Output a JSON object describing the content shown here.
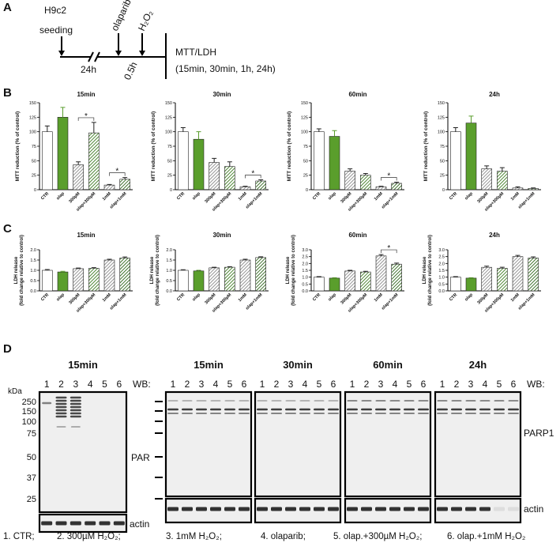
{
  "panel_a": {
    "label": "A",
    "cell": "H9c2",
    "seeding": "seeding",
    "first_interval": "24h",
    "drug": "olaparib",
    "second_interval": "0.5h",
    "stress": "H₂O₂",
    "readout": "MTT/LDH",
    "times": "(15min, 30min, 1h, 24h)"
  },
  "panel_b_label": "B",
  "panel_c_label": "C",
  "chart_data": [
    {
      "type": "bar",
      "title": "15min",
      "ylabel": "MTT reduction (% of control)",
      "categories": [
        "CTR",
        "olap",
        "300µM",
        "olap+300µM",
        "1mM",
        "olap+1mM"
      ],
      "values": [
        100,
        125,
        43,
        98,
        8,
        18
      ],
      "errors": [
        10,
        17,
        5,
        18,
        1,
        3
      ],
      "colors": [
        "#ffffff",
        "#5a9e2c",
        "#8a8a8a",
        "#3c7a20",
        "#8a8a8a",
        "#2c6418"
      ],
      "hatch": [
        false,
        false,
        true,
        true,
        true,
        true
      ],
      "ylim": [
        0,
        150
      ],
      "yticks": [
        0,
        25,
        50,
        75,
        100,
        125,
        150
      ],
      "significance": [
        {
          "between": [
            "300µM",
            "olap+300µM"
          ],
          "label": "*"
        },
        {
          "between": [
            "1mM",
            "olap+1mM"
          ],
          "label": "*"
        }
      ]
    },
    {
      "type": "bar",
      "title": "30min",
      "ylabel": "MTT reduction (% of control)",
      "categories": [
        "CTR",
        "olap",
        "300µM",
        "olap+300µM",
        "1mM",
        "olap+1mM"
      ],
      "values": [
        100,
        87,
        47,
        40,
        5,
        15
      ],
      "errors": [
        7,
        13,
        7,
        8,
        1,
        2
      ],
      "colors": [
        "#ffffff",
        "#5a9e2c",
        "#8a8a8a",
        "#3c7a20",
        "#8a8a8a",
        "#2c6418"
      ],
      "hatch": [
        false,
        false,
        true,
        true,
        true,
        true
      ],
      "ylim": [
        0,
        150
      ],
      "yticks": [
        0,
        25,
        50,
        75,
        100,
        125,
        150
      ],
      "significance": [
        {
          "between": [
            "1mM",
            "olap+1mM"
          ],
          "label": "*"
        }
      ]
    },
    {
      "type": "bar",
      "title": "60min",
      "ylabel": "MTT reduction (% of control)",
      "categories": [
        "CTR",
        "olap",
        "300µM",
        "olap+300µM",
        "1mM",
        "olap+1mM"
      ],
      "values": [
        100,
        92,
        32,
        25,
        5,
        11
      ],
      "errors": [
        5,
        10,
        4,
        3,
        1,
        2
      ],
      "colors": [
        "#ffffff",
        "#5a9e2c",
        "#8a8a8a",
        "#3c7a20",
        "#8a8a8a",
        "#2c6418"
      ],
      "hatch": [
        false,
        false,
        true,
        true,
        true,
        true
      ],
      "ylim": [
        0,
        150
      ],
      "yticks": [
        0,
        25,
        50,
        75,
        100,
        125,
        150
      ],
      "significance": [
        {
          "between": [
            "1mM",
            "olap+1mM"
          ],
          "label": "*"
        }
      ]
    },
    {
      "type": "bar",
      "title": "24h",
      "ylabel": "MTT reduction (% of control)",
      "categories": [
        "CTR",
        "olap",
        "300µM",
        "olap+300µM",
        "1mM",
        "olap+1mM"
      ],
      "values": [
        100,
        115,
        36,
        32,
        3,
        2
      ],
      "errors": [
        7,
        12,
        5,
        6,
        2,
        1
      ],
      "colors": [
        "#ffffff",
        "#5a9e2c",
        "#8a8a8a",
        "#3c7a20",
        "#8a8a8a",
        "#2c6418"
      ],
      "hatch": [
        false,
        false,
        true,
        true,
        true,
        true
      ],
      "ylim": [
        0,
        150
      ],
      "yticks": [
        0,
        25,
        50,
        75,
        100,
        125,
        150
      ],
      "significance": []
    },
    {
      "type": "bar",
      "title": "15min",
      "ylabel": [
        "LDH release",
        "(fold change relative to control)"
      ],
      "categories": [
        "CTR",
        "olap",
        "300µM",
        "olap+300µM",
        "1mM",
        "olap+1mM"
      ],
      "values": [
        1.0,
        0.92,
        1.08,
        1.1,
        1.5,
        1.6
      ],
      "errors": [
        0.04,
        0.03,
        0.03,
        0.03,
        0.04,
        0.05
      ],
      "colors": [
        "#ffffff",
        "#5a9e2c",
        "#8a8a8a",
        "#3c7a20",
        "#8a8a8a",
        "#2c6418"
      ],
      "hatch": [
        false,
        false,
        true,
        true,
        true,
        true
      ],
      "ylim": [
        0,
        2
      ],
      "yticks": [
        {
          "value": 0,
          "label": "0.0"
        },
        {
          "value": 0.5,
          "label": "0.5"
        },
        {
          "value": 1,
          "label": "1.0"
        },
        {
          "value": 1.5,
          "label": "1.5"
        },
        {
          "value": 2,
          "label": "2.0"
        }
      ],
      "significance": []
    },
    {
      "type": "bar",
      "title": "30min",
      "ylabel": [
        "LDH release",
        "(fold change relative to control)"
      ],
      "categories": [
        "CTR",
        "olap",
        "300µM",
        "olap+300µM",
        "1mM",
        "olap+1mM"
      ],
      "values": [
        1.0,
        0.97,
        1.12,
        1.15,
        1.5,
        1.62
      ],
      "errors": [
        0.03,
        0.03,
        0.03,
        0.03,
        0.04,
        0.04
      ],
      "colors": [
        "#ffffff",
        "#5a9e2c",
        "#8a8a8a",
        "#3c7a20",
        "#8a8a8a",
        "#2c6418"
      ],
      "hatch": [
        false,
        false,
        true,
        true,
        true,
        true
      ],
      "ylim": [
        0,
        2
      ],
      "yticks": [
        {
          "value": 0,
          "label": "0.0"
        },
        {
          "value": 0.5,
          "label": "0.5"
        },
        {
          "value": 1,
          "label": "1.0"
        },
        {
          "value": 1.5,
          "label": "1.5"
        },
        {
          "value": 2,
          "label": "2.0"
        }
      ],
      "significance": []
    },
    {
      "type": "bar",
      "title": "60min",
      "ylabel": [
        "LDH release",
        "(fold change relative to control)"
      ],
      "categories": [
        "CTR",
        "olap",
        "300µM",
        "olap+300µM",
        "1mM",
        "olap+1mM"
      ],
      "values": [
        1.0,
        0.93,
        1.45,
        1.38,
        2.55,
        1.95
      ],
      "errors": [
        0.04,
        0.03,
        0.05,
        0.05,
        0.1,
        0.08
      ],
      "colors": [
        "#ffffff",
        "#5a9e2c",
        "#8a8a8a",
        "#3c7a20",
        "#8a8a8a",
        "#2c6418"
      ],
      "hatch": [
        false,
        false,
        true,
        true,
        true,
        true
      ],
      "ylim": [
        0,
        3
      ],
      "yticks": [
        {
          "value": 0,
          "label": "0.0"
        },
        {
          "value": 0.5,
          "label": "0.5"
        },
        {
          "value": 1,
          "label": "1.0"
        },
        {
          "value": 1.5,
          "label": "1.5"
        },
        {
          "value": 2,
          "label": "2.0"
        },
        {
          "value": 2.5,
          "label": "2.5"
        },
        {
          "value": 3,
          "label": "3.0"
        }
      ],
      "significance": [
        {
          "between": [
            "1mM",
            "olap+1mM"
          ],
          "label": "*"
        }
      ]
    },
    {
      "type": "bar",
      "title": "24h",
      "ylabel": [
        "LDH release",
        "(fold change relative to control)"
      ],
      "categories": [
        "CTR",
        "olap",
        "300µM",
        "olap+300µM",
        "1mM",
        "olap+1mM"
      ],
      "values": [
        1.0,
        0.93,
        1.72,
        1.65,
        2.5,
        2.4
      ],
      "errors": [
        0.04,
        0.03,
        0.08,
        0.07,
        0.09,
        0.08
      ],
      "colors": [
        "#ffffff",
        "#5a9e2c",
        "#8a8a8a",
        "#3c7a20",
        "#8a8a8a",
        "#2c6418"
      ],
      "hatch": [
        false,
        false,
        true,
        true,
        true,
        true
      ],
      "ylim": [
        0,
        3
      ],
      "yticks": [
        {
          "value": 0,
          "label": "0.0"
        },
        {
          "value": 0.5,
          "label": "0.5"
        },
        {
          "value": 1,
          "label": "1.0"
        },
        {
          "value": 1.5,
          "label": "1.5"
        },
        {
          "value": 2,
          "label": "2.0"
        },
        {
          "value": 2.5,
          "label": "2.5"
        },
        {
          "value": 3,
          "label": "3.0"
        }
      ],
      "significance": []
    }
  ],
  "panel_d": {
    "label": "D",
    "kda": "kDa",
    "markers": [
      250,
      150,
      100,
      75,
      50,
      37,
      25
    ],
    "wb": "WB:",
    "lanes": [
      1,
      2,
      3,
      4,
      5,
      6
    ],
    "left": {
      "time": "15min",
      "target": "PAR",
      "loading": "actin"
    },
    "right": {
      "times": [
        "15min",
        "30min",
        "60min",
        "24h"
      ],
      "target": "PARP1",
      "loading": "actin"
    },
    "legend": [
      "1.  CTR;",
      "2. 300µM H₂O₂;",
      "3. 1mM H₂O₂;",
      "4. olaparib;",
      "5. olap.+300µM H₂O₂;",
      "6. olap.+1mM H₂O₂"
    ]
  }
}
